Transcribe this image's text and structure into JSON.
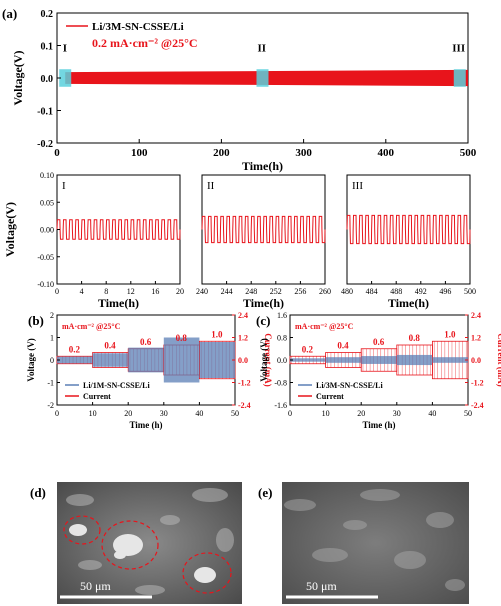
{
  "chart_data": [
    {
      "id": "a",
      "panel_label": "(a)",
      "type": "line",
      "legend_label": "Li/3M-SN-CSSE/Li",
      "annotation": "0.2 mA·cm⁻² @25°C",
      "xlabel": "Time(h)",
      "ylabel": "Voltage(V)",
      "xlim": [
        0,
        500
      ],
      "ylim": [
        -0.2,
        0.2
      ],
      "xticks": [
        "0",
        "100",
        "200",
        "300",
        "400",
        "500"
      ],
      "yticks": [
        "-0.2",
        "-0.1",
        "0.0",
        "0.1",
        "0.2"
      ],
      "voltage_band": {
        "from_h": 10,
        "to_h": 500,
        "start_amplitude_v": 0.018,
        "end_amplitude_v": 0.025
      },
      "highlight_regions": [
        {
          "label": "I",
          "center_h": 10
        },
        {
          "label": "II",
          "center_h": 250
        },
        {
          "label": "III",
          "center_h": 490
        }
      ],
      "color": "#e8141b"
    },
    {
      "id": "a-I",
      "panel_label": "I",
      "type": "line",
      "xlabel": "Time(h)",
      "ylabel": "Voltage(V)",
      "xlim": [
        0,
        20
      ],
      "ylim": [
        -0.1,
        0.1
      ],
      "xticks": [
        "0",
        "4",
        "8",
        "12",
        "16",
        "20"
      ],
      "yticks": [
        "-0.10",
        "-0.05",
        "0.00",
        "0.05",
        "0.10"
      ],
      "amplitude_v": 0.018,
      "cycles": 20,
      "color": "#e8141b"
    },
    {
      "id": "a-II",
      "panel_label": "II",
      "type": "line",
      "xlabel": "Time(h)",
      "xlim": [
        240,
        260
      ],
      "ylim": [
        -0.1,
        0.1
      ],
      "xticks": [
        "240",
        "244",
        "248",
        "252",
        "256",
        "260"
      ],
      "amplitude_v": 0.024,
      "cycles": 20,
      "color": "#e8141b"
    },
    {
      "id": "a-III",
      "panel_label": "III",
      "type": "line",
      "xlabel": "Time(h)",
      "xlim": [
        480,
        500
      ],
      "ylim": [
        -0.1,
        0.1
      ],
      "xticks": [
        "480",
        "484",
        "488",
        "492",
        "496",
        "500"
      ],
      "amplitude_v": 0.026,
      "cycles": 20,
      "color": "#e8141b"
    },
    {
      "id": "b",
      "panel_label": "(b)",
      "type": "line",
      "annotation": "mA·cm⁻² @25°C",
      "xlabel": "Time (h)",
      "ylabel": "Voltage (V)",
      "y2label": "Current (mA)",
      "xlim": [
        0,
        50
      ],
      "ylim": [
        -2,
        2
      ],
      "y2lim": [
        -2.4,
        2.4
      ],
      "xticks": [
        "0",
        "10",
        "20",
        "30",
        "40",
        "50"
      ],
      "yticks": [
        "-2",
        "-1",
        "0",
        "1",
        "2"
      ],
      "y2ticks": [
        "-2.4",
        "-1.2",
        "0.0",
        "1.2",
        "2.4"
      ],
      "steps": [
        {
          "label": "0.2",
          "from_h": 0,
          "to_h": 10,
          "current_ma": 0.2,
          "voltage_v": 0.15
        },
        {
          "label": "0.4",
          "from_h": 10,
          "to_h": 20,
          "current_ma": 0.4,
          "voltage_v": 0.3
        },
        {
          "label": "0.6",
          "from_h": 20,
          "to_h": 30,
          "current_ma": 0.6,
          "voltage_v": 0.55
        },
        {
          "label": "0.8",
          "from_h": 30,
          "to_h": 40,
          "current_ma": 0.8,
          "voltage_v": 1.0
        },
        {
          "label": "1.0",
          "from_h": 40,
          "to_h": 50,
          "current_ma": 1.0,
          "voltage_v": 0.8
        }
      ],
      "series": [
        {
          "name": "Li/1M-SN-CSSE/Li",
          "color": "#5b7fb5"
        },
        {
          "name": "Current",
          "color": "#e8141b"
        }
      ]
    },
    {
      "id": "c",
      "panel_label": "(c)",
      "type": "line",
      "annotation": "mA·cm⁻² @25°C",
      "xlabel": "Time (h)",
      "ylabel": "Voltage (V)",
      "y2label": "Current (mA)",
      "xlim": [
        0,
        50
      ],
      "ylim": [
        -1.6,
        1.6
      ],
      "y2lim": [
        -2.4,
        2.4
      ],
      "xticks": [
        "0",
        "10",
        "20",
        "30",
        "40",
        "50"
      ],
      "yticks": [
        "-1.6",
        "-0.8",
        "0.0",
        "0.8",
        "1.6"
      ],
      "y2ticks": [
        "-2.4",
        "-1.2",
        "0.0",
        "1.2",
        "2.4"
      ],
      "steps": [
        {
          "label": "0.2",
          "from_h": 0,
          "to_h": 10,
          "current_ma": 0.2,
          "voltage_v": 0.06
        },
        {
          "label": "0.4",
          "from_h": 10,
          "to_h": 20,
          "current_ma": 0.4,
          "voltage_v": 0.1
        },
        {
          "label": "0.6",
          "from_h": 20,
          "to_h": 30,
          "current_ma": 0.6,
          "voltage_v": 0.14
        },
        {
          "label": "0.8",
          "from_h": 30,
          "to_h": 40,
          "current_ma": 0.8,
          "voltage_v": 0.18
        },
        {
          "label": "1.0",
          "from_h": 40,
          "to_h": 50,
          "current_ma": 1.0,
          "voltage_v": 0.1
        }
      ],
      "series": [
        {
          "name": "Li/3M-SN-CSSE/Li",
          "color": "#5b7fb5"
        },
        {
          "name": "Current",
          "color": "#e8141b"
        }
      ]
    }
  ],
  "images": {
    "d": {
      "panel_label": "(d)",
      "scale_bar_label": "50 μm"
    },
    "e": {
      "panel_label": "(e)",
      "scale_bar_label": "50 μm"
    }
  }
}
